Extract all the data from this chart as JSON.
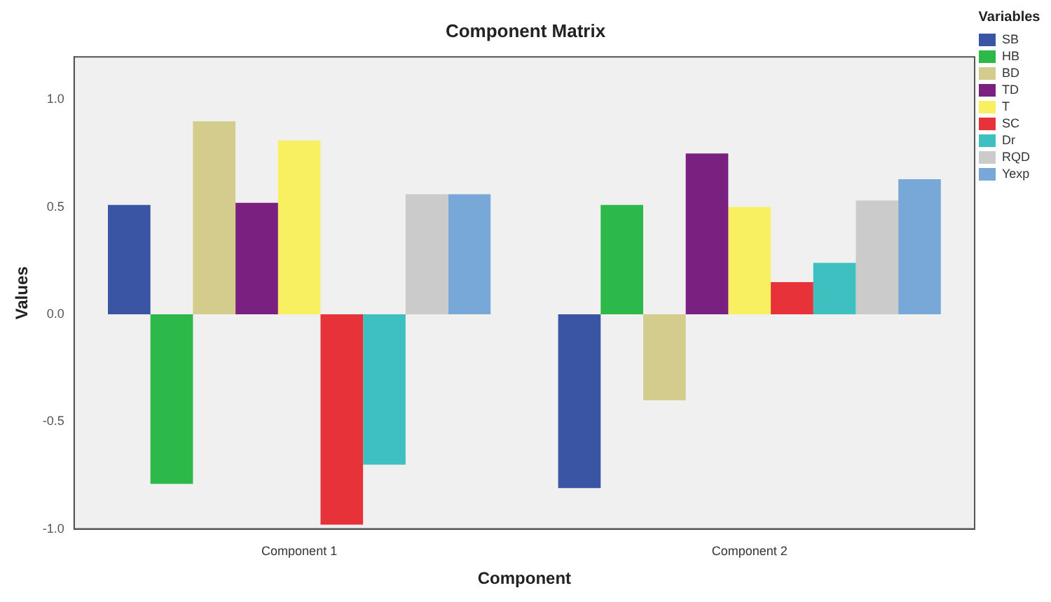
{
  "chart_data": {
    "type": "bar",
    "title": "Component Matrix",
    "xlabel": "Component",
    "ylabel": "Values",
    "legend_title": "Variables",
    "categories": [
      "Component 1",
      "Component 2"
    ],
    "series": [
      {
        "name": "SB",
        "color": "#3a55a4",
        "values": [
          0.51,
          -0.81
        ]
      },
      {
        "name": "HB",
        "color": "#2db84a",
        "values": [
          -0.79,
          0.51
        ]
      },
      {
        "name": "BD",
        "color": "#d4cc8c",
        "values": [
          0.9,
          -0.4
        ]
      },
      {
        "name": "TD",
        "color": "#7a2080",
        "values": [
          0.52,
          0.75
        ]
      },
      {
        "name": "T",
        "color": "#f8f060",
        "values": [
          0.81,
          0.5
        ]
      },
      {
        "name": "SC",
        "color": "#e8323a",
        "values": [
          -0.98,
          0.15
        ]
      },
      {
        "name": "Dr",
        "color": "#3ebfc0",
        "values": [
          -0.7,
          0.24
        ]
      },
      {
        "name": "RQD",
        "color": "#cbcbcb",
        "values": [
          0.56,
          0.53
        ]
      },
      {
        "name": "Yexp",
        "color": "#78a8d8",
        "values": [
          0.56,
          0.63
        ]
      }
    ],
    "ylim": [
      -1.0,
      1.2
    ],
    "yticks": [
      {
        "value": -1,
        "label": "-1.0"
      },
      {
        "value": -0.5,
        "label": "-0.5"
      },
      {
        "value": 0,
        "label": "0.0"
      },
      {
        "value": 0.5,
        "label": "0.5"
      },
      {
        "value": 1,
        "label": "1.0"
      }
    ],
    "grid": false,
    "legend": "top right"
  }
}
